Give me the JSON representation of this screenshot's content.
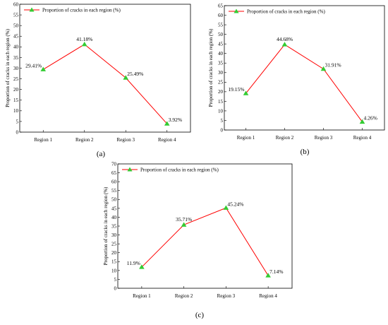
{
  "chart_data": [
    {
      "type": "line",
      "panel_label": "(a)",
      "ylabel": "Proportion of cracks in each region (%)",
      "ylim": [
        0,
        60
      ],
      "ytick_step": 5,
      "categories": [
        "Region 1",
        "Region 2",
        "Region 3",
        "Region 4"
      ],
      "series": [
        {
          "name": "Proportion of cracks in each region (%)",
          "values": [
            29.41,
            41.18,
            25.49,
            3.92
          ],
          "labels": [
            "29.41%",
            "41.18%",
            "25.49%",
            "3.92%"
          ],
          "line_color": "#ff0000",
          "marker_color": "#33cc33"
        }
      ],
      "legend": "top-left",
      "grid": false
    },
    {
      "type": "line",
      "panel_label": "(b)",
      "ylabel": "Proportion of cracks in each region (%)",
      "ylim": [
        0,
        65
      ],
      "ytick_step": 5,
      "categories": [
        "Region 1",
        "Region 2",
        "Region 3",
        "Region 4"
      ],
      "series": [
        {
          "name": "Proportion of cracks in each region (%)",
          "values": [
            19.15,
            44.68,
            31.91,
            4.26
          ],
          "labels": [
            "19.15%",
            "44.68%",
            "31.91%",
            "4.26%"
          ],
          "line_color": "#ff0000",
          "marker_color": "#33cc33"
        }
      ],
      "legend": "top-left",
      "grid": false
    },
    {
      "type": "line",
      "panel_label": "(c)",
      "ylabel": "Proportion of cracks in each region (%)",
      "ylim": [
        0,
        70
      ],
      "ytick_step": 5,
      "categories": [
        "Region 1",
        "Region 2",
        "Region 3",
        "Region 4"
      ],
      "series": [
        {
          "name": "Proportion of cracks in each region (%)",
          "values": [
            11.9,
            35.71,
            45.24,
            7.14
          ],
          "labels": [
            "11.9%",
            "35.71%",
            "45.24%",
            "7.14%"
          ],
          "line_color": "#ff0000",
          "marker_color": "#33cc33"
        }
      ],
      "legend": "top-left",
      "grid": false
    }
  ]
}
